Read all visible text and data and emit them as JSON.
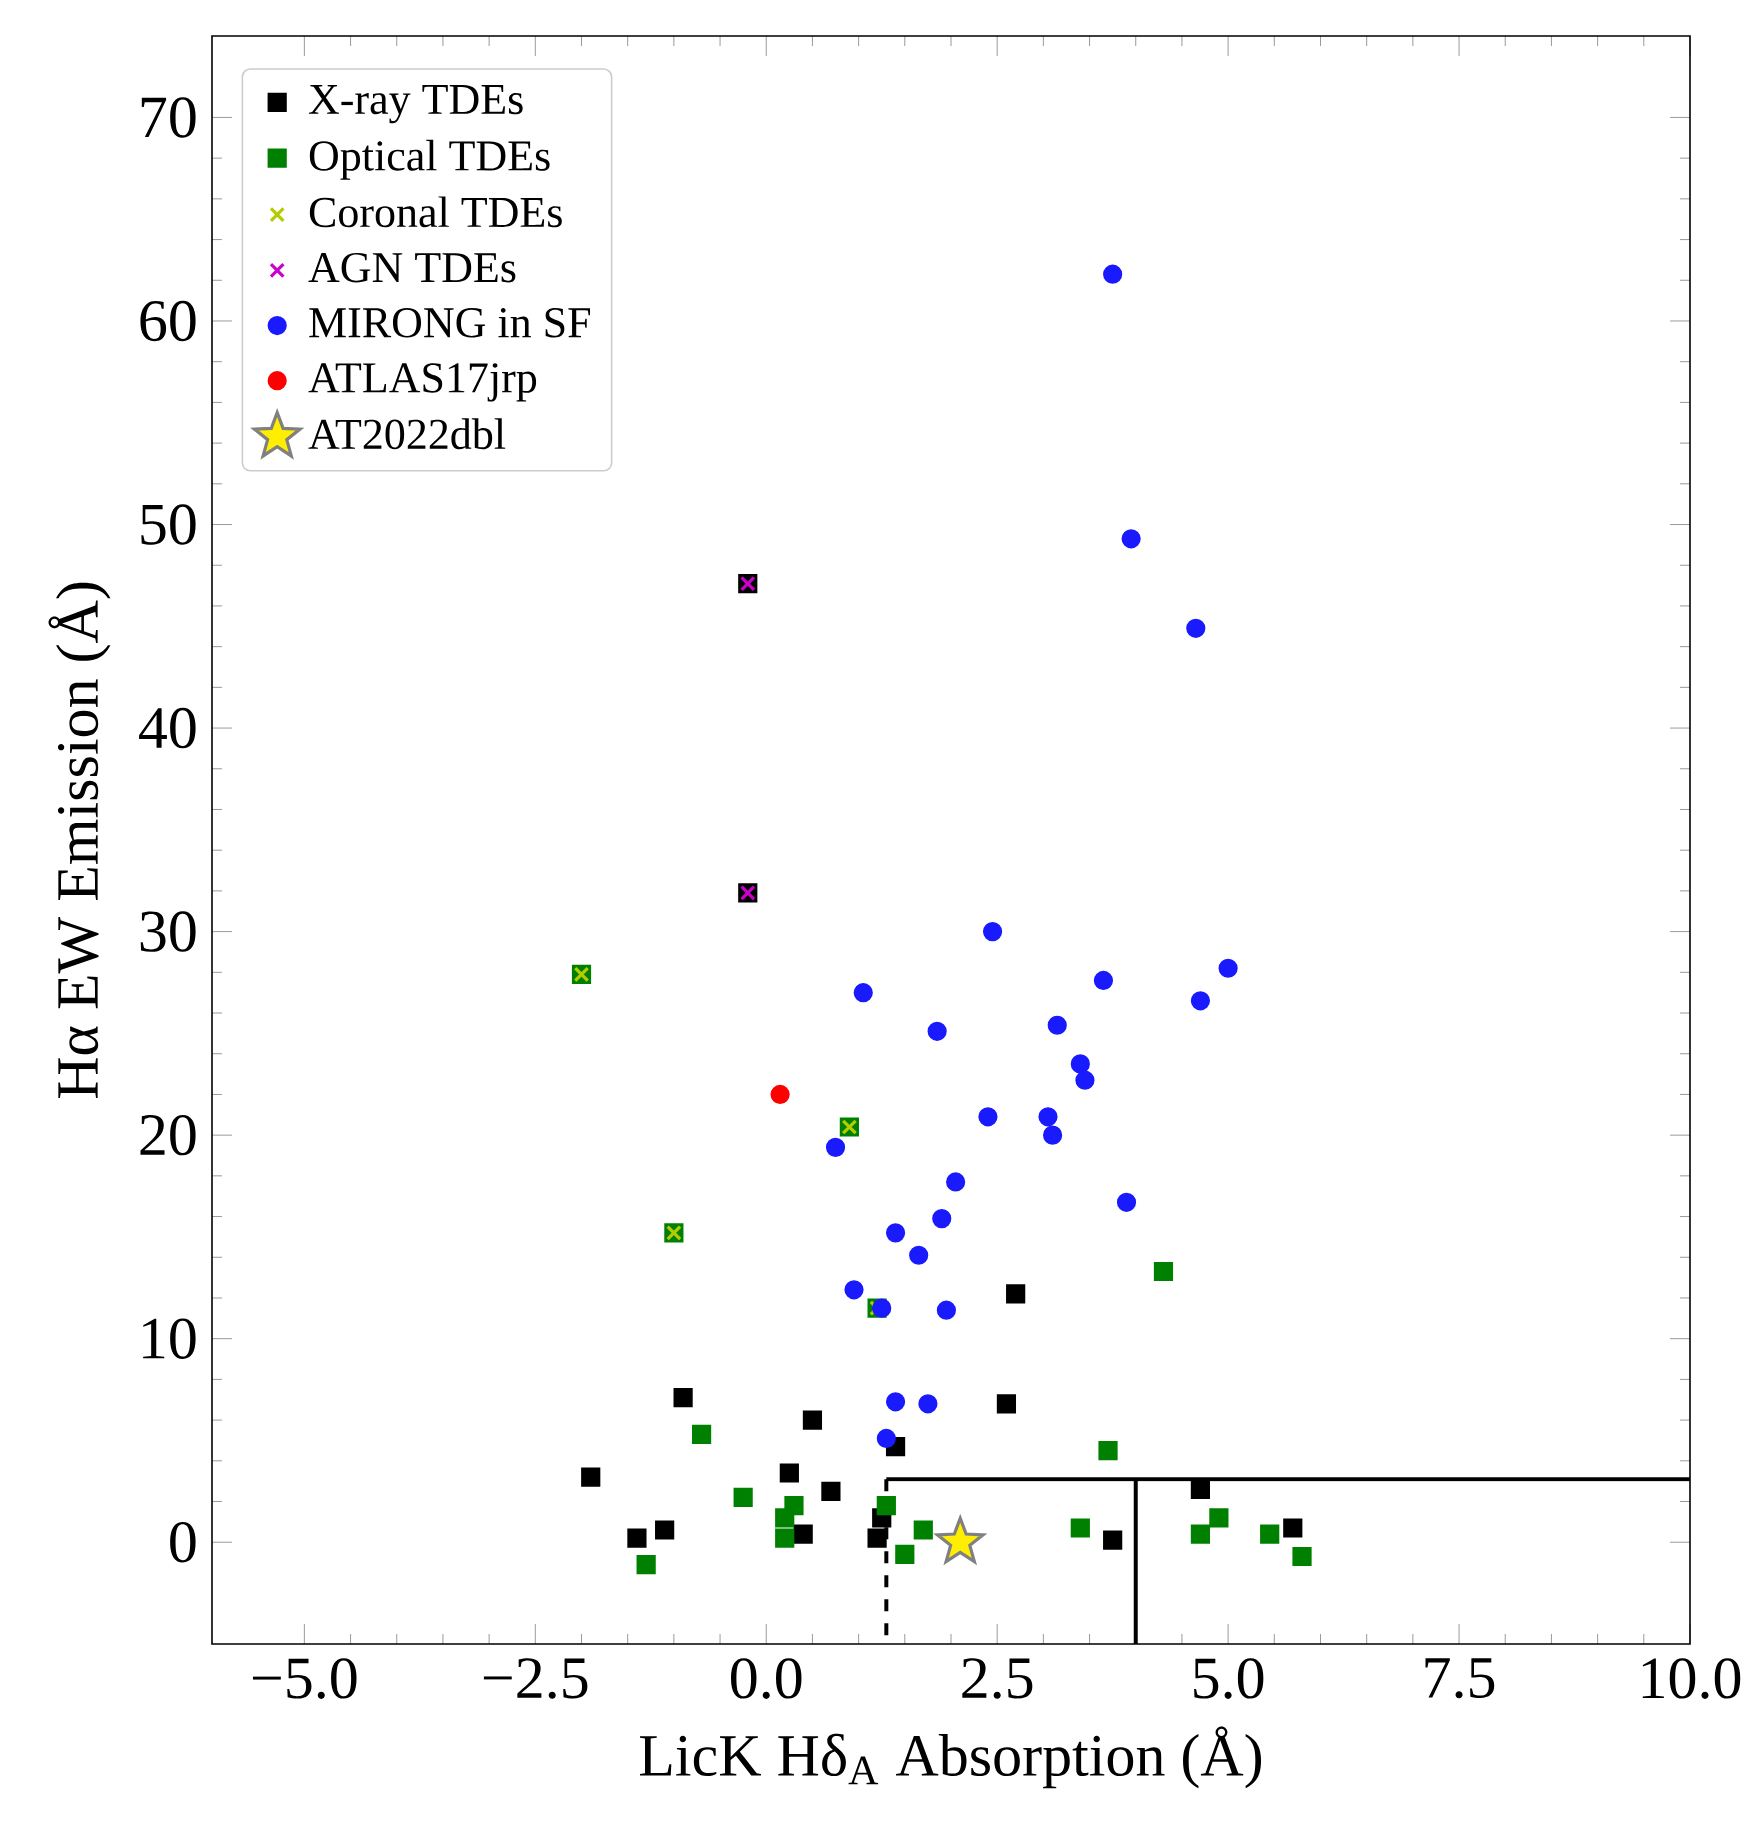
{
  "chart_data": {
    "type": "scatter",
    "xlabel": "LicK Hδ$_{A}$ Absorption (Å)",
    "ylabel": "Hα EW Emission (Å)",
    "xlim": [
      -6,
      10
    ],
    "ylim": [
      -5,
      74
    ],
    "xticks": [
      {
        "value": -5,
        "label": "−5.0"
      },
      {
        "value": -2.5,
        "label": "−2.5"
      },
      {
        "value": 0,
        "label": "0.0"
      },
      {
        "value": 2.5,
        "label": "2.5"
      },
      {
        "value": 5,
        "label": "5.0"
      },
      {
        "value": 7.5,
        "label": "7.5"
      },
      {
        "value": 10,
        "label": "10.0"
      }
    ],
    "yticks": [
      0,
      10,
      20,
      30,
      40,
      50,
      60,
      70
    ],
    "legend": "top left",
    "series": [
      {
        "name": "X-ray TDEs",
        "color": "#000000",
        "marker": "square",
        "x": [
          2.7,
          -0.9,
          2.6,
          0.5,
          1.4,
          -1.9,
          0.25,
          0.7,
          4.7,
          1.25,
          -1.4,
          -1.1,
          0.4,
          1.2,
          3.75,
          5.7,
          -0.2,
          -0.2
        ],
        "values": [
          12.2,
          7.1,
          6.8,
          6.0,
          4.7,
          3.2,
          3.4,
          2.5,
          2.6,
          1.2,
          0.2,
          0.6,
          0.4,
          0.2,
          0.1,
          0.7,
          47.1,
          31.9
        ]
      },
      {
        "name": "Optical TDEs",
        "color": "#008000",
        "marker": "square",
        "x": [
          3.7,
          1.3,
          0.3,
          0.2,
          0.2,
          1.7,
          1.5,
          3.4,
          4.9,
          4.7,
          5.45,
          5.8,
          -0.7,
          -0.25,
          -1.3,
          4.3,
          -2.0,
          0.9,
          -1.0,
          1.2
        ],
        "values": [
          4.5,
          1.8,
          1.8,
          1.2,
          0.2,
          0.6,
          -0.6,
          0.7,
          1.2,
          0.4,
          0.4,
          -0.7,
          5.3,
          2.2,
          -1.1,
          13.3,
          27.9,
          20.4,
          15.2,
          11.5
        ]
      },
      {
        "name": "Coronal TDEs",
        "color": "#b5cc00",
        "marker": "cross",
        "x": [
          -2.0,
          0.9,
          -1.0,
          1.2
        ],
        "values": [
          27.9,
          20.4,
          15.2,
          11.5
        ]
      },
      {
        "name": "AGN TDEs",
        "color": "#cc00cc",
        "marker": "cross",
        "x": [
          -0.2,
          -0.2
        ],
        "values": [
          47.1,
          31.9
        ]
      },
      {
        "name": "MIRONG in SF",
        "color": "#1a1aff",
        "marker": "circle",
        "x": [
          2.45,
          5.0,
          1.05,
          3.65,
          4.7,
          1.85,
          3.15,
          3.4,
          3.45,
          2.4,
          3.05,
          3.1,
          0.75,
          2.05,
          3.9,
          1.9,
          1.4,
          1.65,
          0.95,
          1.25,
          1.95,
          1.4,
          1.75,
          1.3,
          3.75,
          3.95,
          4.65
        ],
        "values": [
          30.0,
          28.2,
          27.0,
          27.6,
          26.6,
          25.1,
          25.4,
          23.5,
          22.7,
          20.9,
          20.9,
          20.0,
          19.4,
          17.7,
          16.7,
          15.9,
          15.2,
          14.1,
          12.4,
          11.5,
          11.4,
          6.9,
          6.8,
          5.1,
          62.3,
          49.3,
          44.9
        ]
      },
      {
        "name": "ATLAS17jrp",
        "color": "#ff0000",
        "marker": "circle",
        "x": [
          0.15
        ],
        "values": [
          22.0
        ]
      },
      {
        "name": "AT2022dbl",
        "color": "#ffee00",
        "marker": "star",
        "x": [
          2.1
        ],
        "values": [
          0.0
        ]
      },
      {
        "type": "line",
        "color": "#000000",
        "line_style": "solid",
        "x": [
          1.3,
          10
        ],
        "values": [
          3.1,
          3.1
        ]
      },
      {
        "type": "line",
        "color": "#000000",
        "line_style": "solid",
        "x": [
          4.0,
          4.0
        ],
        "values": [
          3.1,
          -5
        ]
      },
      {
        "type": "line",
        "color": "#000000",
        "line_style": "dashed",
        "x": [
          1.3,
          1.3
        ],
        "values": [
          3.1,
          -5
        ]
      }
    ]
  }
}
